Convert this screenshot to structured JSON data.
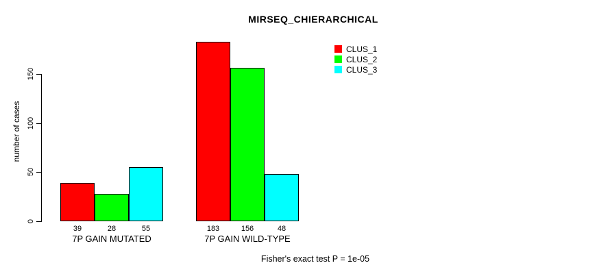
{
  "chart_data": {
    "type": "bar",
    "title": "MIRSEQ_CHIERARCHICAL",
    "ylabel": "number of cases",
    "xlabel": "",
    "categories": [
      "7P GAIN MUTATED",
      "7P GAIN WILD-TYPE"
    ],
    "series": [
      {
        "name": "CLUS_1",
        "color": "#ff0000",
        "values": [
          39,
          183
        ]
      },
      {
        "name": "CLUS_2",
        "color": "#00ff00",
        "values": [
          28,
          156
        ]
      },
      {
        "name": "CLUS_3",
        "color": "#00ffff",
        "values": [
          55,
          48
        ]
      }
    ],
    "yticks": [
      0,
      50,
      100,
      150
    ],
    "ylim": [
      0,
      150
    ],
    "grid": false,
    "legend_position": "top-right",
    "bar_value_labels_shown": true,
    "annotation": "Fisher's exact test P = 1e-05",
    "axis_color": "#000000",
    "bar_border_color": "#000000"
  }
}
